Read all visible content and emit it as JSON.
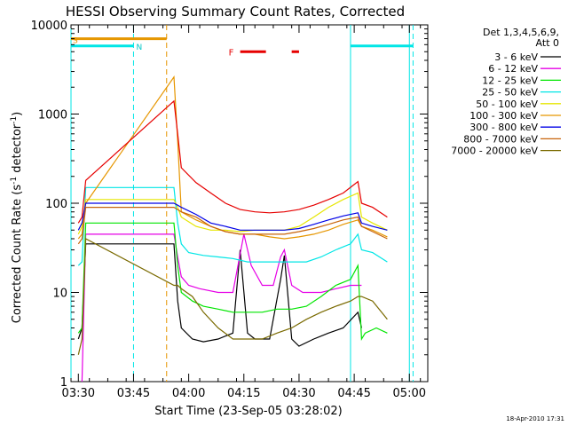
{
  "chart_data": {
    "type": "line",
    "title": "HESSI Observing Summary Count Rates, Corrected",
    "xlabel": "Start Time (23-Sep-05 03:28:02)",
    "ylabel": "Corrected Count Rate (s",
    "ylabel_sup": "-1",
    "ylabel_mid": " detector",
    "ylabel_sup2": "-1",
    "ylabel_end": ")",
    "timestamp": "18-Apr-2010 17:31",
    "x_ticks": [
      "03:30",
      "03:45",
      "04:00",
      "04:15",
      "04:30",
      "04:45",
      "05:00"
    ],
    "x_tick_minutes": [
      2,
      17,
      32,
      47,
      62,
      77,
      92
    ],
    "xlim_minutes": [
      0,
      97
    ],
    "y_ticks": [
      "1",
      "10",
      "100",
      "1000",
      "10000"
    ],
    "y_tick_values": [
      1,
      10,
      100,
      1000,
      10000
    ],
    "ylim": [
      1,
      10000
    ],
    "yscale": "log",
    "legend": {
      "title_line1": "Det 1,3,4,5,6,9,",
      "title_line2": "Att 0",
      "placement": "right"
    },
    "annotations": {
      "flag_s": "S",
      "flag_n": "N",
      "flag_f": "F"
    },
    "series": [
      {
        "name": "3 - 6 keV",
        "color": "#000000",
        "points": [
          [
            2,
            3
          ],
          [
            3,
            4
          ],
          [
            4,
            35
          ],
          [
            28,
            35
          ],
          [
            29,
            8
          ],
          [
            30,
            4
          ],
          [
            33,
            3
          ],
          [
            36,
            2.8
          ],
          [
            40,
            3
          ],
          [
            44,
            3.5
          ],
          [
            46,
            30
          ],
          [
            48,
            3.5
          ],
          [
            50,
            3
          ],
          [
            54,
            3
          ],
          [
            57,
            14
          ],
          [
            58,
            26
          ],
          [
            60,
            3
          ],
          [
            62,
            2.5
          ],
          [
            66,
            3
          ],
          [
            70,
            3.5
          ],
          [
            74,
            4
          ],
          [
            78,
            6
          ],
          [
            79,
            4
          ]
        ]
      },
      {
        "name": "6 - 12 keV",
        "color": "#e600e6",
        "points": [
          [
            2,
            0.5
          ],
          [
            3,
            1
          ],
          [
            4,
            45
          ],
          [
            28,
            45
          ],
          [
            29,
            25
          ],
          [
            30,
            15
          ],
          [
            32,
            12
          ],
          [
            35,
            11
          ],
          [
            40,
            10
          ],
          [
            44,
            10
          ],
          [
            47,
            45
          ],
          [
            49,
            20
          ],
          [
            52,
            12
          ],
          [
            55,
            12
          ],
          [
            57,
            25
          ],
          [
            58,
            30
          ],
          [
            60,
            12
          ],
          [
            63,
            10
          ],
          [
            68,
            10
          ],
          [
            72,
            11
          ],
          [
            76,
            12
          ],
          [
            78,
            12
          ],
          [
            79,
            12
          ]
        ]
      },
      {
        "name": "12 - 25 keV",
        "color": "#00e600",
        "points": [
          [
            2,
            3.5
          ],
          [
            3,
            4
          ],
          [
            4,
            60
          ],
          [
            28,
            60
          ],
          [
            29,
            20
          ],
          [
            30,
            10
          ],
          [
            33,
            8
          ],
          [
            36,
            7
          ],
          [
            40,
            6.5
          ],
          [
            44,
            6
          ],
          [
            48,
            6
          ],
          [
            52,
            6
          ],
          [
            56,
            6.5
          ],
          [
            60,
            6.5
          ],
          [
            64,
            7
          ],
          [
            68,
            9
          ],
          [
            72,
            12
          ],
          [
            76,
            14
          ],
          [
            78,
            20
          ],
          [
            79,
            3
          ],
          [
            80,
            3.5
          ],
          [
            83,
            4
          ],
          [
            86,
            3.5
          ]
        ]
      },
      {
        "name": "25 - 50 keV",
        "color": "#00e6e6",
        "points": [
          [
            2,
            20
          ],
          [
            3,
            22
          ],
          [
            4,
            150
          ],
          [
            28,
            150
          ],
          [
            29,
            60
          ],
          [
            30,
            35
          ],
          [
            32,
            28
          ],
          [
            36,
            26
          ],
          [
            40,
            25
          ],
          [
            44,
            24
          ],
          [
            48,
            22
          ],
          [
            52,
            22
          ],
          [
            56,
            22
          ],
          [
            60,
            22
          ],
          [
            64,
            22
          ],
          [
            68,
            25
          ],
          [
            72,
            30
          ],
          [
            76,
            35
          ],
          [
            78,
            45
          ],
          [
            79,
            30
          ],
          [
            82,
            28
          ],
          [
            86,
            22
          ]
        ]
      },
      {
        "name": "50 - 100 keV",
        "color": "#e6e600",
        "points": [
          [
            2,
            45
          ],
          [
            3,
            55
          ],
          [
            4,
            110
          ],
          [
            28,
            110
          ],
          [
            29,
            90
          ],
          [
            30,
            70
          ],
          [
            34,
            55
          ],
          [
            38,
            50
          ],
          [
            42,
            50
          ],
          [
            46,
            48
          ],
          [
            50,
            50
          ],
          [
            54,
            50
          ],
          [
            58,
            50
          ],
          [
            62,
            55
          ],
          [
            66,
            70
          ],
          [
            70,
            90
          ],
          [
            74,
            110
          ],
          [
            78,
            130
          ],
          [
            79,
            70
          ],
          [
            82,
            60
          ],
          [
            86,
            50
          ]
        ]
      },
      {
        "name": "100 - 300 keV",
        "color": "#e69600",
        "points": [
          [
            2,
            40
          ],
          [
            3,
            45
          ],
          [
            4,
            100
          ],
          [
            28,
            2600
          ],
          [
            29,
            500
          ],
          [
            30,
            80
          ],
          [
            34,
            65
          ],
          [
            38,
            55
          ],
          [
            42,
            48
          ],
          [
            46,
            45
          ],
          [
            50,
            45
          ],
          [
            54,
            42
          ],
          [
            58,
            40
          ],
          [
            62,
            42
          ],
          [
            66,
            45
          ],
          [
            70,
            50
          ],
          [
            74,
            58
          ],
          [
            78,
            65
          ],
          [
            79,
            55
          ],
          [
            82,
            50
          ],
          [
            86,
            42
          ]
        ]
      },
      {
        "name": "300 - 800 keV",
        "color": "#0000e6",
        "points": [
          [
            2,
            50
          ],
          [
            3,
            60
          ],
          [
            4,
            100
          ],
          [
            28,
            100
          ],
          [
            29,
            95
          ],
          [
            30,
            90
          ],
          [
            34,
            75
          ],
          [
            38,
            60
          ],
          [
            42,
            55
          ],
          [
            46,
            50
          ],
          [
            50,
            50
          ],
          [
            54,
            50
          ],
          [
            58,
            50
          ],
          [
            62,
            52
          ],
          [
            66,
            58
          ],
          [
            70,
            65
          ],
          [
            74,
            72
          ],
          [
            78,
            78
          ],
          [
            79,
            60
          ],
          [
            82,
            55
          ],
          [
            86,
            50
          ]
        ]
      },
      {
        "name": "800 - 7000 keV",
        "color": "#c8640a",
        "points": [
          [
            2,
            35
          ],
          [
            3,
            40
          ],
          [
            4,
            90
          ],
          [
            28,
            90
          ],
          [
            29,
            85
          ],
          [
            30,
            80
          ],
          [
            34,
            70
          ],
          [
            38,
            55
          ],
          [
            42,
            48
          ],
          [
            46,
            45
          ],
          [
            50,
            45
          ],
          [
            54,
            45
          ],
          [
            58,
            45
          ],
          [
            62,
            48
          ],
          [
            66,
            52
          ],
          [
            70,
            58
          ],
          [
            74,
            65
          ],
          [
            78,
            70
          ],
          [
            79,
            55
          ],
          [
            82,
            48
          ],
          [
            86,
            40
          ]
        ]
      },
      {
        "name": "7000 - 20000 keV",
        "color": "#7a6a00",
        "points": [
          [
            2,
            2
          ],
          [
            3,
            3
          ],
          [
            4,
            40
          ],
          [
            28,
            12
          ],
          [
            29,
            12
          ],
          [
            30,
            11
          ],
          [
            33,
            9
          ],
          [
            36,
            6
          ],
          [
            40,
            4
          ],
          [
            44,
            3
          ],
          [
            48,
            3
          ],
          [
            52,
            3
          ],
          [
            56,
            3.5
          ],
          [
            60,
            4
          ],
          [
            64,
            5
          ],
          [
            68,
            6
          ],
          [
            72,
            7
          ],
          [
            76,
            8
          ],
          [
            78,
            9
          ],
          [
            79,
            9
          ],
          [
            82,
            8
          ],
          [
            86,
            5
          ]
        ]
      },
      {
        "name": "",
        "color": "#e60000",
        "points": [
          [
            2,
            60
          ],
          [
            3,
            70
          ],
          [
            4,
            180
          ],
          [
            28,
            1400
          ],
          [
            29,
            600
          ],
          [
            30,
            250
          ],
          [
            34,
            170
          ],
          [
            38,
            130
          ],
          [
            42,
            100
          ],
          [
            46,
            85
          ],
          [
            50,
            80
          ],
          [
            54,
            78
          ],
          [
            58,
            80
          ],
          [
            62,
            85
          ],
          [
            66,
            95
          ],
          [
            70,
            110
          ],
          [
            74,
            130
          ],
          [
            78,
            175
          ],
          [
            79,
            100
          ],
          [
            82,
            90
          ],
          [
            86,
            70
          ]
        ]
      }
    ],
    "markers": {
      "cyan_solid_minutes": [
        0,
        76,
        92
      ],
      "cyan_dashed_minutes": [
        17,
        93
      ],
      "orange_dashed_minutes": [
        26
      ],
      "orange_bar": {
        "from": 0,
        "to": 26,
        "value": 7000
      },
      "cyan_bars": [
        {
          "from": 0,
          "to": 17,
          "value": 5800
        },
        {
          "from": 76,
          "to": 93,
          "value": 5800
        }
      ],
      "red_flare_segments": [
        {
          "from": 46,
          "to": 53,
          "value": 5000
        },
        {
          "from": 60,
          "to": 62,
          "value": 5000
        }
      ]
    }
  }
}
